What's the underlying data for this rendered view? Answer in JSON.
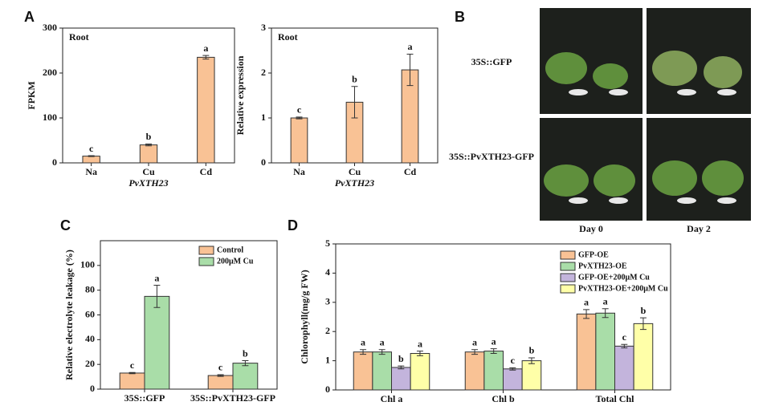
{
  "chart_data": [
    {
      "type": "bar",
      "panel": "A",
      "title": "Root",
      "y_label": "FPKM",
      "x_label": "PvXTH23",
      "categories": [
        "Na",
        "Cu",
        "Cd"
      ],
      "values": [
        15,
        40,
        235
      ],
      "errors": [
        1,
        2,
        4
      ],
      "letters": [
        "c",
        "b",
        "a"
      ],
      "color": "#f9c295",
      "ylim": [
        0,
        300
      ],
      "yticks": [
        0,
        100,
        200,
        300
      ]
    },
    {
      "type": "bar",
      "title": "Root",
      "y_label": "Relative expression",
      "x_label": "PvXTH23",
      "categories": [
        "Na",
        "Cu",
        "Cd"
      ],
      "values": [
        1.0,
        1.35,
        2.07
      ],
      "errors": [
        0.02,
        0.35,
        0.35
      ],
      "letters": [
        "c",
        "b",
        "a"
      ],
      "color": "#f9c295",
      "ylim": [
        0,
        3
      ],
      "yticks": [
        0,
        1,
        2,
        3
      ]
    },
    {
      "type": "grouped_bar",
      "panel": "C",
      "y_label": "Relative electrolyte leakage (%)",
      "categories": [
        "35S::GFP",
        "35S::PvXTH23-GFP"
      ],
      "series": [
        {
          "name": "Control",
          "color": "#f9c295",
          "values": [
            13,
            11
          ],
          "errors": [
            0.5,
            0.7
          ],
          "letters": [
            "c",
            "c"
          ]
        },
        {
          "name": "200μM Cu",
          "color": "#a9dda8",
          "values": [
            75,
            21
          ],
          "errors": [
            9,
            2
          ],
          "letters": [
            "a",
            "b"
          ]
        }
      ],
      "ylim": [
        0,
        120
      ],
      "yticks": [
        0,
        20,
        40,
        60,
        80,
        100
      ]
    },
    {
      "type": "grouped_bar",
      "panel": "D",
      "y_label": "Chlorophyll(mg/g FW)",
      "categories": [
        "Chl a",
        "Chl b",
        "Total Chl"
      ],
      "series": [
        {
          "name": "GFP-OE",
          "color": "#f9c295",
          "values": [
            1.3,
            1.3,
            2.6
          ],
          "errors": [
            0.08,
            0.08,
            0.15
          ],
          "letters": [
            "a",
            "a",
            "a"
          ]
        },
        {
          "name": "PvXTH23-OE",
          "color": "#a9dda8",
          "values": [
            1.3,
            1.33,
            2.63
          ],
          "errors": [
            0.08,
            0.08,
            0.15
          ],
          "letters": [
            "a",
            "a",
            "a"
          ]
        },
        {
          "name": "GFP-OE+200μM Cu",
          "color": "#c3b4dc",
          "values": [
            0.77,
            0.72,
            1.5
          ],
          "errors": [
            0.05,
            0.04,
            0.06
          ],
          "letters": [
            "b",
            "c",
            "c"
          ]
        },
        {
          "name": "PvXTH23-OE+200μM Cu",
          "color": "#ffffa8",
          "values": [
            1.25,
            1.0,
            2.27
          ],
          "errors": [
            0.08,
            0.1,
            0.2
          ],
          "letters": [
            "a",
            "b",
            "b"
          ]
        }
      ],
      "ylim": [
        0,
        5
      ],
      "yticks": [
        0,
        1,
        2,
        3,
        4,
        5
      ]
    }
  ],
  "photo_panel": {
    "panel": "B",
    "row_labels": [
      "35S::GFP",
      "35S::PvXTH23-GFP"
    ],
    "column_labels": [
      "Day 0",
      "Day 2"
    ]
  }
}
